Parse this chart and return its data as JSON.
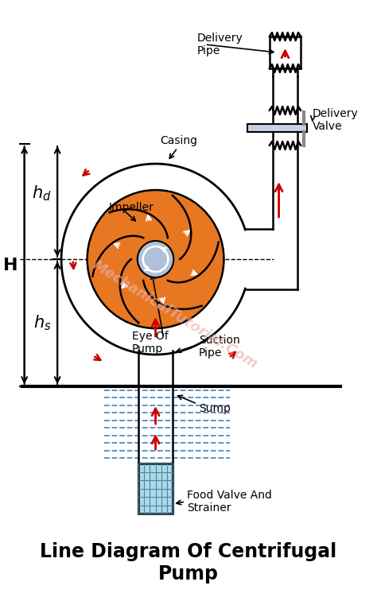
{
  "title": "Line Diagram Of Centrifugal\nPump",
  "title_fontsize": 17,
  "bg_color": "#ffffff",
  "labels": {
    "casing": "Casing",
    "impeller": "Impeller",
    "eye_of_pump": "Eye Of\nPump",
    "suction_pipe": "Suction\nPipe",
    "sump": "Sump",
    "food_valve": "Food Valve And\nStrainer",
    "delivery_pipe": "Delivery\nPipe",
    "delivery_valve": "Delivery\nValve"
  },
  "colors": {
    "casing_outline": "#000000",
    "impeller_fill": "#e87722",
    "impeller_outline": "#000000",
    "eye_fill": "#b0c0d8",
    "arrow_red": "#cc0000",
    "pipe_fill": "#cccccc",
    "valve_fill": "#c8d0e8",
    "water_line": "#3377bb",
    "strainer_fill": "#add8e6",
    "watermark": "#e8b0b0"
  }
}
